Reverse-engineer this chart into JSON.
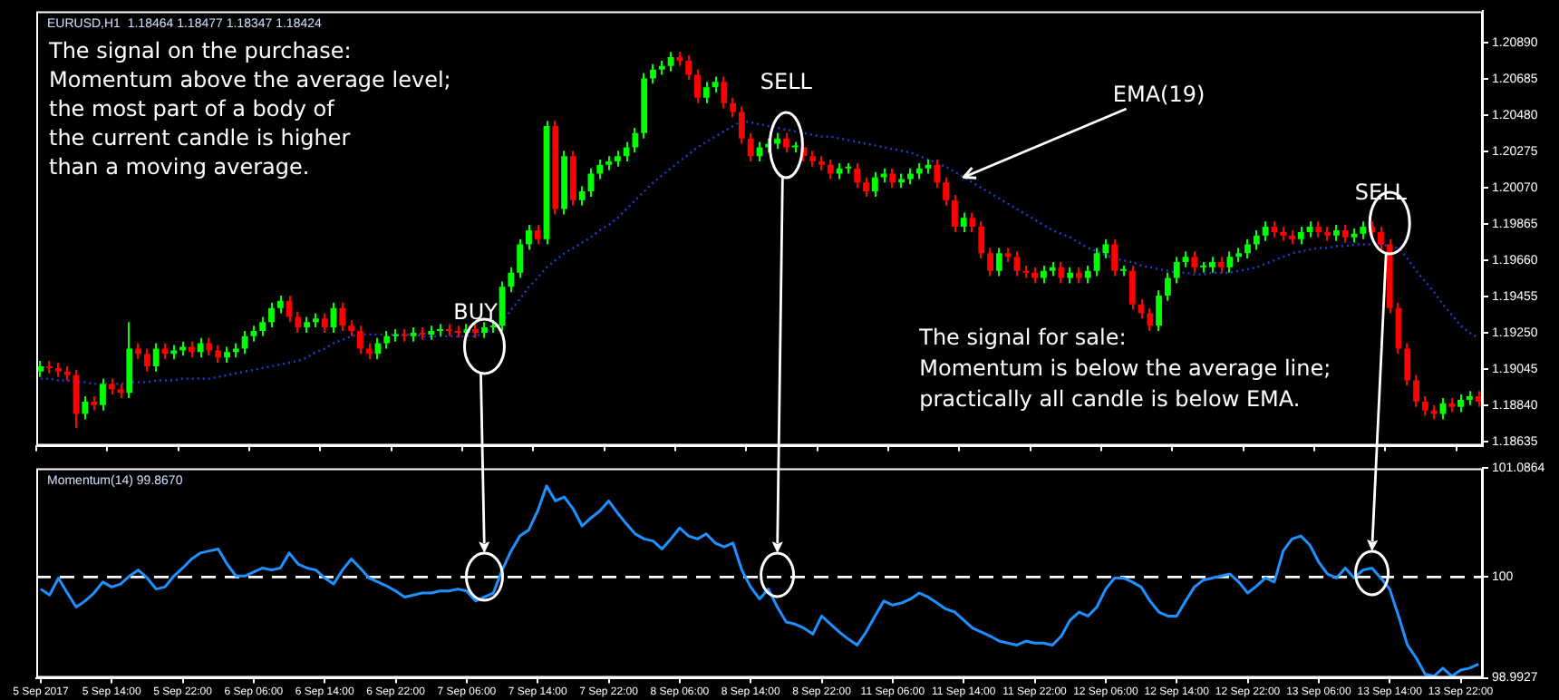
{
  "chart_data": [
    {
      "type": "candlestick",
      "title": "EURUSD,H1  1.18464 1.18477 1.18347 1.18424",
      "categories": [
        "5 Sep 2017",
        null,
        null,
        null,
        null,
        null,
        null,
        null,
        "5 Sep 14:00",
        null,
        null,
        null,
        null,
        null,
        null,
        null,
        "5 Sep 22:00",
        null,
        null,
        null,
        null,
        null,
        null,
        null,
        "6 Sep 06:00",
        null,
        null,
        null,
        null,
        null,
        null,
        null,
        "6 Sep 14:00",
        null,
        null,
        null,
        null,
        null,
        null,
        null,
        "6 Sep 22:00",
        null,
        null,
        null,
        null,
        null,
        null,
        null,
        "7 Sep 06:00",
        null,
        null,
        null,
        null,
        null,
        null,
        null,
        "7 Sep 14:00",
        null,
        null,
        null,
        null,
        null,
        null,
        null,
        "7 Sep 22:00",
        null,
        null,
        null,
        null,
        null,
        null,
        null,
        "8 Sep 06:00",
        null,
        null,
        null,
        null,
        null,
        null,
        null,
        "8 Sep 14:00",
        null,
        null,
        null,
        null,
        null,
        null,
        null,
        "8 Sep 22:00",
        null,
        null,
        null,
        null,
        null,
        null,
        null,
        "11 Sep 06:00",
        null,
        null,
        null,
        null,
        null,
        null,
        null,
        "11 Sep 14:00",
        null,
        null,
        null,
        null,
        null,
        null,
        null,
        "11 Sep 22:00",
        null,
        null,
        null,
        null,
        null,
        null,
        null,
        "12 Sep 06:00",
        null,
        null,
        null,
        null,
        null,
        null,
        null,
        "12 Sep 14:00",
        null,
        null,
        null,
        null,
        null,
        null,
        null,
        "12 Sep 22:00",
        null,
        null,
        null,
        null,
        null,
        null,
        null,
        "13 Sep 06:00",
        null,
        null,
        null,
        null,
        null,
        null,
        null,
        "13 Sep 14:00",
        null,
        null,
        null,
        null,
        null,
        null,
        null,
        "13 Sep 22:00",
        null,
        null
      ],
      "ohlc": [
        [
          1.1903,
          1.1909,
          1.19,
          1.1906
        ],
        [
          1.1906,
          1.1909,
          1.1902,
          1.1905
        ],
        [
          1.1905,
          1.1908,
          1.19,
          1.1903
        ],
        [
          1.1903,
          1.1906,
          1.1898,
          1.1901
        ],
        [
          1.1901,
          1.1904,
          1.1871,
          1.1879
        ],
        [
          1.1879,
          1.1889,
          1.1876,
          1.1886
        ],
        [
          1.1886,
          1.1889,
          1.1881,
          1.1884
        ],
        [
          1.1884,
          1.1899,
          1.1881,
          1.1896
        ],
        [
          1.1896,
          1.1899,
          1.189,
          1.1893
        ],
        [
          1.1893,
          1.1896,
          1.1888,
          1.1891
        ],
        [
          1.1891,
          1.1931,
          1.1888,
          1.1916
        ],
        [
          1.1916,
          1.1919,
          1.191,
          1.1913
        ],
        [
          1.1913,
          1.1916,
          1.1903,
          1.1906
        ],
        [
          1.1906,
          1.1919,
          1.1903,
          1.1916
        ],
        [
          1.1916,
          1.1919,
          1.191,
          1.1913
        ],
        [
          1.1913,
          1.1918,
          1.191,
          1.1915
        ],
        [
          1.1915,
          1.192,
          1.1912,
          1.1917
        ],
        [
          1.1917,
          1.192,
          1.1911,
          1.1914
        ],
        [
          1.1914,
          1.1922,
          1.1911,
          1.1919
        ],
        [
          1.1919,
          1.1922,
          1.1912,
          1.1915
        ],
        [
          1.1915,
          1.1918,
          1.1908,
          1.1911
        ],
        [
          1.1911,
          1.1917,
          1.1908,
          1.1914
        ],
        [
          1.1914,
          1.1919,
          1.1911,
          1.1916
        ],
        [
          1.1916,
          1.1926,
          1.1913,
          1.1923
        ],
        [
          1.1923,
          1.1929,
          1.192,
          1.1926
        ],
        [
          1.1926,
          1.1934,
          1.1923,
          1.1931
        ],
        [
          1.1931,
          1.1942,
          1.1928,
          1.1939
        ],
        [
          1.1939,
          1.1946,
          1.1936,
          1.1943
        ],
        [
          1.1943,
          1.1946,
          1.1931,
          1.1934
        ],
        [
          1.1934,
          1.1937,
          1.1925,
          1.1928
        ],
        [
          1.1928,
          1.1934,
          1.1925,
          1.1931
        ],
        [
          1.1931,
          1.1936,
          1.1928,
          1.1933
        ],
        [
          1.1933,
          1.1936,
          1.1925,
          1.1928
        ],
        [
          1.1928,
          1.1942,
          1.1925,
          1.1939
        ],
        [
          1.1939,
          1.1942,
          1.1926,
          1.1929
        ],
        [
          1.1929,
          1.1932,
          1.1923,
          1.1926
        ],
        [
          1.1926,
          1.1929,
          1.1913,
          1.1916
        ],
        [
          1.1916,
          1.1919,
          1.191,
          1.1913
        ],
        [
          1.1913,
          1.1922,
          1.191,
          1.1919
        ],
        [
          1.1919,
          1.1926,
          1.1916,
          1.1923
        ],
        [
          1.1923,
          1.1927,
          1.192,
          1.1924
        ],
        [
          1.1924,
          1.1927,
          1.192,
          1.1923
        ],
        [
          1.1923,
          1.1928,
          1.192,
          1.1925
        ],
        [
          1.1925,
          1.1928,
          1.1921,
          1.1924
        ],
        [
          1.1924,
          1.1929,
          1.1921,
          1.1926
        ],
        [
          1.1926,
          1.193,
          1.1923,
          1.1927
        ],
        [
          1.1927,
          1.193,
          1.1923,
          1.1926
        ],
        [
          1.1926,
          1.1929,
          1.1922,
          1.1925
        ],
        [
          1.1925,
          1.193,
          1.1922,
          1.1927
        ],
        [
          1.1927,
          1.193,
          1.1922,
          1.1925
        ],
        [
          1.1925,
          1.1931,
          1.1922,
          1.1928
        ],
        [
          1.1928,
          1.1932,
          1.1925,
          1.1929
        ],
        [
          1.1929,
          1.1954,
          1.1926,
          1.1951
        ],
        [
          1.1951,
          1.1962,
          1.1948,
          1.1959
        ],
        [
          1.1959,
          1.1978,
          1.1956,
          1.1975
        ],
        [
          1.1975,
          1.1986,
          1.1972,
          1.1983
        ],
        [
          1.1983,
          1.1986,
          1.1975,
          1.1978
        ],
        [
          1.1978,
          1.2045,
          1.1975,
          1.2042
        ],
        [
          1.2042,
          1.2045,
          1.1992,
          1.1995
        ],
        [
          1.1995,
          1.2028,
          1.1992,
          1.2025
        ],
        [
          1.2025,
          1.2028,
          1.1997,
          1.2
        ],
        [
          1.2,
          1.2008,
          1.1997,
          1.2005
        ],
        [
          1.2005,
          1.2018,
          1.2002,
          1.2015
        ],
        [
          1.2015,
          1.2023,
          1.2012,
          1.202
        ],
        [
          1.202,
          1.2025,
          1.2017,
          1.2022
        ],
        [
          1.2022,
          1.2028,
          1.2019,
          1.2025
        ],
        [
          1.2025,
          1.2033,
          1.2022,
          1.203
        ],
        [
          1.203,
          1.2041,
          1.2027,
          1.2038
        ],
        [
          1.2038,
          1.2072,
          1.2035,
          1.2069
        ],
        [
          1.2069,
          1.2077,
          1.2066,
          1.2074
        ],
        [
          1.2074,
          1.2079,
          1.2071,
          1.2076
        ],
        [
          1.2076,
          1.2084,
          1.2073,
          1.2081
        ],
        [
          1.2081,
          1.2084,
          1.2076,
          1.2079
        ],
        [
          1.2079,
          1.2082,
          1.2068,
          1.2071
        ],
        [
          1.2071,
          1.2074,
          1.2055,
          1.2058
        ],
        [
          1.2058,
          1.2067,
          1.2055,
          1.2064
        ],
        [
          1.2064,
          1.207,
          1.2061,
          1.2067
        ],
        [
          1.2067,
          1.207,
          1.2052,
          1.2055
        ],
        [
          1.2055,
          1.2058,
          1.2047,
          1.205
        ],
        [
          1.205,
          1.2053,
          1.2032,
          1.2035
        ],
        [
          1.2035,
          1.2038,
          1.2022,
          1.2025
        ],
        [
          1.2025,
          1.2033,
          1.2022,
          1.203
        ],
        [
          1.203,
          1.2035,
          1.2027,
          1.2032
        ],
        [
          1.2032,
          1.2038,
          1.2029,
          1.2035
        ],
        [
          1.2035,
          1.2038,
          1.2027,
          1.203
        ],
        [
          1.203,
          1.2033,
          1.2027,
          1.203
        ],
        [
          1.203,
          1.2033,
          1.2022,
          1.2025
        ],
        [
          1.2025,
          1.2028,
          1.2019,
          1.2022
        ],
        [
          1.2022,
          1.2025,
          1.2017,
          1.202
        ],
        [
          1.202,
          1.2023,
          1.2012,
          1.2015
        ],
        [
          1.2015,
          1.2021,
          1.2012,
          1.2018
        ],
        [
          1.2018,
          1.2021,
          1.2015,
          1.2018
        ],
        [
          1.2018,
          1.2021,
          1.2007,
          1.201
        ],
        [
          1.201,
          1.2013,
          1.2002,
          1.2005
        ],
        [
          1.2005,
          1.2016,
          1.2002,
          1.2013
        ],
        [
          1.2013,
          1.2018,
          1.201,
          1.2015
        ],
        [
          1.2015,
          1.2018,
          1.2007,
          1.201
        ],
        [
          1.201,
          1.2015,
          1.2007,
          1.2012
        ],
        [
          1.2012,
          1.2018,
          1.2009,
          1.2015
        ],
        [
          1.2015,
          1.2021,
          1.2012,
          1.2018
        ],
        [
          1.2018,
          1.2023,
          1.2015,
          1.202
        ],
        [
          1.202,
          1.2023,
          1.2007,
          1.201
        ],
        [
          1.201,
          1.2013,
          1.1997,
          1.2
        ],
        [
          1.2,
          1.2003,
          1.1982,
          1.1985
        ],
        [
          1.1985,
          1.1993,
          1.1982,
          1.199
        ],
        [
          1.199,
          1.1993,
          1.1982,
          1.1985
        ],
        [
          1.1985,
          1.1988,
          1.1967,
          1.197
        ],
        [
          1.197,
          1.1973,
          1.1957,
          1.196
        ],
        [
          1.196,
          1.1973,
          1.1957,
          1.197
        ],
        [
          1.197,
          1.1973,
          1.1965,
          1.1968
        ],
        [
          1.1968,
          1.1971,
          1.1957,
          1.196
        ],
        [
          1.196,
          1.1963,
          1.1956,
          1.1959
        ],
        [
          1.1959,
          1.1962,
          1.1953,
          1.1956
        ],
        [
          1.1956,
          1.1963,
          1.1953,
          1.196
        ],
        [
          1.196,
          1.1965,
          1.1957,
          1.1962
        ],
        [
          1.1962,
          1.1965,
          1.1953,
          1.1956
        ],
        [
          1.1956,
          1.1962,
          1.1953,
          1.1959
        ],
        [
          1.1959,
          1.1962,
          1.1953,
          1.1956
        ],
        [
          1.1956,
          1.1963,
          1.1953,
          1.196
        ],
        [
          1.196,
          1.1973,
          1.1957,
          1.197
        ],
        [
          1.197,
          1.1978,
          1.1967,
          1.1975
        ],
        [
          1.1975,
          1.1978,
          1.1957,
          1.196
        ],
        [
          1.196,
          1.1963,
          1.1957,
          1.196
        ],
        [
          1.196,
          1.1963,
          1.1938,
          1.1941
        ],
        [
          1.1941,
          1.1944,
          1.1933,
          1.1936
        ],
        [
          1.1936,
          1.1939,
          1.1926,
          1.1929
        ],
        [
          1.1929,
          1.1949,
          1.1926,
          1.1946
        ],
        [
          1.1946,
          1.1959,
          1.1943,
          1.1956
        ],
        [
          1.1956,
          1.1968,
          1.1953,
          1.1965
        ],
        [
          1.1965,
          1.1971,
          1.1962,
          1.1968
        ],
        [
          1.1968,
          1.1971,
          1.1959,
          1.1962
        ],
        [
          1.1962,
          1.1965,
          1.1959,
          1.1962
        ],
        [
          1.1962,
          1.1968,
          1.1959,
          1.1965
        ],
        [
          1.1965,
          1.1968,
          1.1959,
          1.1962
        ],
        [
          1.1962,
          1.1971,
          1.1959,
          1.1968
        ],
        [
          1.1968,
          1.1973,
          1.1965,
          1.197
        ],
        [
          1.197,
          1.1978,
          1.1967,
          1.1975
        ],
        [
          1.1975,
          1.1983,
          1.1972,
          1.198
        ],
        [
          1.198,
          1.1988,
          1.1977,
          1.1985
        ],
        [
          1.1985,
          1.1988,
          1.1979,
          1.1982
        ],
        [
          1.1982,
          1.1985,
          1.1977,
          1.198
        ],
        [
          1.198,
          1.1983,
          1.1975,
          1.1978
        ],
        [
          1.1978,
          1.1985,
          1.1975,
          1.1982
        ],
        [
          1.1982,
          1.1988,
          1.1979,
          1.1985
        ],
        [
          1.1985,
          1.1988,
          1.1979,
          1.1982
        ],
        [
          1.1982,
          1.1985,
          1.1977,
          1.198
        ],
        [
          1.198,
          1.1986,
          1.1977,
          1.1983
        ],
        [
          1.1983,
          1.1986,
          1.1976,
          1.1979
        ],
        [
          1.1979,
          1.1984,
          1.1976,
          1.1981
        ],
        [
          1.1981,
          1.1988,
          1.1978,
          1.1985
        ],
        [
          1.1985,
          1.1988,
          1.1979,
          1.1982
        ],
        [
          1.1982,
          1.1985,
          1.1972,
          1.1975
        ],
        [
          1.1975,
          1.1978,
          1.1936,
          1.1939
        ],
        [
          1.1939,
          1.1942,
          1.1913,
          1.1916
        ],
        [
          1.1916,
          1.1919,
          1.1895,
          1.1898
        ],
        [
          1.1898,
          1.1901,
          1.1883,
          1.1886
        ],
        [
          1.1886,
          1.1889,
          1.1878,
          1.1881
        ],
        [
          1.1881,
          1.1884,
          1.1876,
          1.1879
        ],
        [
          1.1879,
          1.1888,
          1.1876,
          1.1885
        ],
        [
          1.1885,
          1.1888,
          1.188,
          1.1883
        ],
        [
          1.1883,
          1.189,
          1.188,
          1.1887
        ],
        [
          1.1887,
          1.1892,
          1.1884,
          1.1889
        ],
        [
          1.1889,
          1.1892,
          1.1883,
          1.1886
        ]
      ],
      "colors": [
        "#00ff00",
        "#ff0000",
        "#ff0000",
        "#ff0000",
        "#ff0000",
        "#00ff00",
        "#ff0000",
        "#00ff00",
        "#ff0000",
        "#ff0000",
        "#00ff00",
        "#ff0000",
        "#ff0000",
        "#00ff00",
        "#ff0000",
        "#00ff00",
        "#00ff00",
        "#ff0000",
        "#00ff00",
        "#ff0000",
        "#ff0000",
        "#00ff00",
        "#00ff00",
        "#00ff00",
        "#00ff00",
        "#00ff00",
        "#00ff00",
        "#00ff00",
        "#ff0000",
        "#ff0000",
        "#00ff00",
        "#00ff00",
        "#ff0000",
        "#00ff00",
        "#ff0000",
        "#ff0000",
        "#ff0000",
        "#ff0000",
        "#00ff00",
        "#00ff00",
        "#00ff00",
        "#ff0000",
        "#00ff00",
        "#ff0000",
        "#00ff00",
        "#00ff00",
        "#ff0000",
        "#ff0000",
        "#00ff00",
        "#ff0000",
        "#00ff00",
        "#00ff00",
        "#00ff00",
        "#00ff00",
        "#00ff00",
        "#00ff00",
        "#ff0000",
        "#00ff00",
        "#ff0000",
        "#00ff00",
        "#ff0000",
        "#00ff00",
        "#00ff00",
        "#00ff00",
        "#00ff00",
        "#00ff00",
        "#00ff00",
        "#00ff00",
        "#00ff00",
        "#00ff00",
        "#00ff00",
        "#00ff00",
        "#ff0000",
        "#ff0000",
        "#ff0000",
        "#00ff00",
        "#00ff00",
        "#ff0000",
        "#ff0000",
        "#ff0000",
        "#ff0000",
        "#00ff00",
        "#00ff00",
        "#00ff00",
        "#ff0000",
        "#00ff00",
        "#ff0000",
        "#ff0000",
        "#ff0000",
        "#ff0000",
        "#00ff00",
        "#00ff00",
        "#ff0000",
        "#ff0000",
        "#00ff00",
        "#00ff00",
        "#ff0000",
        "#00ff00",
        "#00ff00",
        "#00ff00",
        "#00ff00",
        "#ff0000",
        "#ff0000",
        "#ff0000",
        "#00ff00",
        "#ff0000",
        "#ff0000",
        "#ff0000",
        "#00ff00",
        "#ff0000",
        "#ff0000",
        "#ff0000",
        "#ff0000",
        "#00ff00",
        "#00ff00",
        "#ff0000",
        "#00ff00",
        "#ff0000",
        "#00ff00",
        "#00ff00",
        "#00ff00",
        "#ff0000",
        "#00ff00",
        "#ff0000",
        "#ff0000",
        "#ff0000",
        "#00ff00",
        "#00ff00",
        "#00ff00",
        "#00ff00",
        "#ff0000",
        "#00ff00",
        "#00ff00",
        "#ff0000",
        "#00ff00",
        "#00ff00",
        "#00ff00",
        "#00ff00",
        "#00ff00",
        "#ff0000",
        "#ff0000",
        "#ff0000",
        "#00ff00",
        "#00ff00",
        "#ff0000",
        "#ff0000",
        "#00ff00",
        "#ff0000",
        "#00ff00",
        "#00ff00",
        "#ff0000",
        "#ff0000",
        "#ff0000",
        "#ff0000",
        "#ff0000",
        "#ff0000",
        "#ff0000",
        "#ff0000",
        "#00ff00",
        "#ff0000",
        "#00ff00",
        "#00ff00",
        "#ff0000"
      ],
      "series": [
        {
          "type": "line",
          "color": "#1f3fd0",
          "line_style": "dotted",
          "values": [
            1.1899,
            1.1899,
            1.1898,
            1.1898,
            1.1897,
            1.1897,
            1.1896,
            1.1896,
            1.1896,
            1.1896,
            1.1897,
            1.1897,
            1.1897,
            1.1898,
            1.1898,
            1.1898,
            1.1899,
            1.1899,
            1.1899,
            1.1899,
            1.19,
            1.1901,
            1.1902,
            1.1903,
            1.1904,
            1.1905,
            1.1906,
            1.1907,
            1.1908,
            1.1909,
            1.1911,
            1.1914,
            1.1916,
            1.1919,
            1.1921,
            1.1923,
            1.1924,
            1.1924,
            1.1924,
            1.1924,
            1.1924,
            1.1924,
            1.1924,
            1.1923,
            1.1923,
            1.1923,
            1.1923,
            1.1923,
            1.1923,
            1.1923,
            1.1925,
            1.1928,
            1.1931,
            1.1938,
            1.1944,
            1.1951,
            1.1956,
            1.1962,
            1.1966,
            1.197,
            1.1973,
            1.1976,
            1.1979,
            1.1983,
            1.1986,
            1.199,
            1.1995,
            1.2,
            1.2005,
            1.201,
            1.2014,
            1.2018,
            1.2022,
            1.2026,
            1.203,
            1.2033,
            1.2036,
            1.2039,
            1.2042,
            1.2045,
            1.2044,
            1.2043,
            1.2042,
            1.2041,
            1.204,
            1.2039,
            1.2038,
            1.2037,
            1.2036,
            1.2036,
            1.2035,
            1.2034,
            1.2033,
            1.2032,
            1.2031,
            1.203,
            1.2029,
            1.2028,
            1.2027,
            1.2025,
            1.2023,
            1.2021,
            1.2019,
            1.2016,
            1.2013,
            1.201,
            1.2007,
            1.2004,
            1.2001,
            1.1998,
            1.1995,
            1.1992,
            1.1989,
            1.1986,
            1.1983,
            1.1981,
            1.1979,
            1.1976,
            1.1973,
            1.1971,
            1.1969,
            1.1967,
            1.1966,
            1.1965,
            1.1963,
            1.1962,
            1.1961,
            1.196,
            1.1959,
            1.1959,
            1.1958,
            1.1958,
            1.1959,
            1.1959,
            1.1959,
            1.196,
            1.1961,
            1.1962,
            1.1964,
            1.1966,
            1.1968,
            1.197,
            1.1971,
            1.1972,
            1.1973,
            1.1973,
            1.1974,
            1.1974,
            1.1975,
            1.1975,
            1.1975,
            1.1975,
            1.1974,
            1.1973,
            1.1967,
            1.196,
            1.1954,
            1.1948,
            1.1941,
            1.1935,
            1.1929,
            1.1925,
            1.1922
          ]
        }
      ],
      "ylim": [
        1.1861,
        1.2107
      ],
      "yticks": [
        {
          "value": 1.18635,
          "label": "1.18635"
        },
        {
          "value": 1.1884,
          "label": "1.18840"
        },
        {
          "value": 1.19045,
          "label": "1.19045"
        },
        {
          "value": 1.1925,
          "label": "1.19250"
        },
        {
          "value": 1.19455,
          "label": "1.19455"
        },
        {
          "value": 1.1966,
          "label": "1.19660"
        },
        {
          "value": 1.19865,
          "label": "1.19865"
        },
        {
          "value": 1.2007,
          "label": "1.20070"
        },
        {
          "value": 1.20275,
          "label": "1.20275"
        },
        {
          "value": 1.2048,
          "label": "1.20480"
        },
        {
          "value": 1.20685,
          "label": "1.20685"
        },
        {
          "value": 1.2089,
          "label": "1.20890"
        }
      ],
      "tick_labels": "y",
      "annotations": [
        "The signal on the purchase:\nMomentum above the average level;\nthe most part of a body of\nthe current candle is higher\nthan a moving average.",
        "BUY",
        "SELL",
        {
          "text": "EMA(19)",
          "x": "11 Sep 14:00",
          "y": 1.2013
        },
        "SELL",
        "The signal for sale:\nMomentum is below the average line;\npractically all candle is below EMA."
      ]
    },
    {
      "type": "line",
      "title": "Momentum(14) 99.8670",
      "categories": [
        "5 Sep 2017",
        null,
        null,
        null,
        null,
        null,
        null,
        null,
        "5 Sep 14:00",
        null,
        null,
        null,
        null,
        null,
        null,
        null,
        "5 Sep 22:00",
        null,
        null,
        null,
        null,
        null,
        null,
        null,
        "6 Sep 06:00",
        null,
        null,
        null,
        null,
        null,
        null,
        null,
        "6 Sep 14:00",
        null,
        null,
        null,
        null,
        null,
        null,
        null,
        "6 Sep 22:00",
        null,
        null,
        null,
        null,
        null,
        null,
        null,
        "7 Sep 06:00",
        null,
        null,
        null,
        null,
        null,
        null,
        null,
        "7 Sep 14:00",
        null,
        null,
        null,
        null,
        null,
        null,
        null,
        "7 Sep 22:00",
        null,
        null,
        null,
        null,
        null,
        null,
        null,
        "8 Sep 06:00",
        null,
        null,
        null,
        null,
        null,
        null,
        null,
        "8 Sep 14:00",
        null,
        null,
        null,
        null,
        null,
        null,
        null,
        "8 Sep 22:00",
        null,
        null,
        null,
        null,
        null,
        null,
        null,
        "11 Sep 06:00",
        null,
        null,
        null,
        null,
        null,
        null,
        null,
        "11 Sep 14:00",
        null,
        null,
        null,
        null,
        null,
        null,
        null,
        "11 Sep 22:00",
        null,
        null,
        null,
        null,
        null,
        null,
        null,
        "12 Sep 06:00",
        null,
        null,
        null,
        null,
        null,
        null,
        null,
        "12 Sep 14:00",
        null,
        null,
        null,
        null,
        null,
        null,
        null,
        "12 Sep 22:00",
        null,
        null,
        null,
        null,
        null,
        null,
        null,
        "13 Sep 06:00",
        null,
        null,
        null,
        null,
        null,
        null,
        null,
        "13 Sep 14:00",
        null,
        null,
        null,
        null,
        null,
        null,
        null,
        "13 Sep 22:00",
        null,
        null
      ],
      "series": [
        {
          "color": "#1e90ff",
          "values": [
            99.88,
            99.82,
            99.99,
            99.84,
            99.7,
            99.76,
            99.84,
            99.95,
            99.9,
            99.93,
            100.01,
            100.07,
            99.99,
            99.88,
            99.9,
            100.01,
            100.09,
            100.18,
            100.24,
            100.26,
            100.28,
            100.13,
            100.01,
            100.01,
            100.05,
            100.09,
            100.07,
            100.09,
            100.24,
            100.13,
            100.09,
            100.07,
            99.99,
            99.93,
            100.07,
            100.18,
            100.09,
            99.99,
            99.95,
            99.91,
            99.86,
            99.8,
            99.82,
            99.84,
            99.84,
            99.86,
            99.86,
            99.88,
            99.86,
            99.76,
            99.8,
            99.84,
            100.07,
            100.26,
            100.41,
            100.47,
            100.66,
            100.91,
            100.76,
            100.8,
            100.68,
            100.51,
            100.59,
            100.66,
            100.76,
            100.64,
            100.53,
            100.43,
            100.38,
            100.36,
            100.28,
            100.38,
            100.49,
            100.41,
            100.38,
            100.43,
            100.34,
            100.3,
            100.34,
            100.07,
            99.9,
            99.78,
            99.88,
            99.7,
            99.55,
            99.53,
            99.49,
            99.43,
            99.61,
            99.53,
            99.45,
            99.38,
            99.32,
            99.45,
            99.61,
            99.76,
            99.72,
            99.74,
            99.78,
            99.84,
            99.8,
            99.74,
            99.68,
            99.65,
            99.57,
            99.49,
            99.45,
            99.41,
            99.36,
            99.34,
            99.32,
            99.36,
            99.34,
            99.34,
            99.32,
            99.41,
            99.57,
            99.65,
            99.61,
            99.7,
            99.88,
            99.99,
            99.99,
            99.95,
            99.9,
            99.76,
            99.65,
            99.61,
            99.61,
            99.76,
            99.9,
            99.97,
            99.99,
            100.01,
            100.03,
            99.95,
            99.84,
            99.91,
            99.99,
            99.95,
            100.26,
            100.38,
            100.41,
            100.32,
            100.15,
            100.03,
            99.99,
            100.09,
            99.99,
            100.07,
            100.09,
            99.99,
            99.88,
            99.61,
            99.32,
            99.19,
            99.03,
            99.01,
            99.09,
            99.01,
            99.07,
            99.09,
            99.13
          ]
        }
      ],
      "ylim": [
        98.9927,
        101.0864
      ],
      "yticks": [
        98.9927,
        100,
        101.0864
      ],
      "ref_lines": [
        {
          "axis": "y",
          "value": 100,
          "color": "#ffffff",
          "line_style": "dashed"
        }
      ]
    }
  ]
}
